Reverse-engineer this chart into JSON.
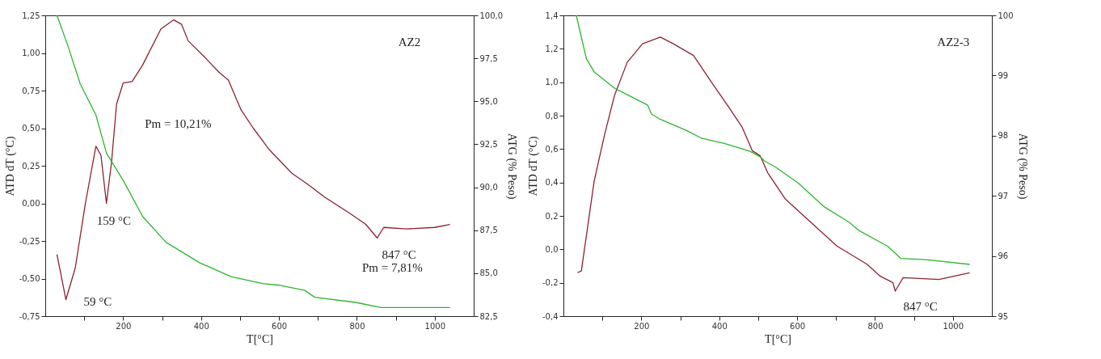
{
  "chart_data": [
    {
      "type": "line",
      "xlabel": "T[°C]",
      "ylabel": "ATD dT (°C)",
      "y2label": "ATG (% Peso)",
      "xlim": [
        0,
        1100
      ],
      "xticks": [
        {
          "value": 100,
          "label": null
        },
        200,
        {
          "value": 300,
          "label": null
        },
        400,
        {
          "value": 500,
          "label": null
        },
        600,
        {
          "value": 700,
          "label": null
        },
        800,
        {
          "value": 900,
          "label": null
        },
        1000
      ],
      "ylim": [
        -0.75,
        1.25
      ],
      "yticks": [
        {
          "value": -0.75,
          "label": "-0,75"
        },
        {
          "value": -0.5,
          "label": "-0,50"
        },
        {
          "value": -0.25,
          "label": "-0,25"
        },
        {
          "value": 0,
          "label": "0,00"
        },
        {
          "value": 0.25,
          "label": "0,25"
        },
        {
          "value": 0.5,
          "label": "0,50"
        },
        {
          "value": 0.75,
          "label": "0,75"
        },
        {
          "value": 1,
          "label": "1,00"
        },
        {
          "value": 1.25,
          "label": "1,25"
        }
      ],
      "y2lim": [
        82.5,
        100
      ],
      "y2ticks": [
        {
          "value": 82.5,
          "label": "82,5"
        },
        {
          "value": 85,
          "label": "85,0"
        },
        {
          "value": 87.5,
          "label": "87,5"
        },
        {
          "value": 90,
          "label": "90,0"
        },
        {
          "value": 92.5,
          "label": "92,5"
        },
        {
          "value": 95,
          "label": "95,0"
        },
        {
          "value": 97.5,
          "label": "97,5"
        },
        {
          "value": 100,
          "label": "100,0"
        }
      ],
      "series": [
        {
          "color": "#8b2232",
          "x": [
            30,
            53,
            77,
            103,
            130,
            143,
            157,
            170,
            183,
            200,
            223,
            250,
            297,
            330,
            350,
            367,
            410,
            447,
            470,
            503,
            534,
            557,
            574,
            633,
            672,
            718,
            784,
            823,
            852,
            869,
            928,
            1000,
            1039
          ],
          "values": [
            -0.34,
            -0.64,
            -0.43,
            0.0,
            0.38,
            0.32,
            0.0,
            0.27,
            0.66,
            0.8,
            0.81,
            0.92,
            1.16,
            1.22,
            1.19,
            1.08,
            0.97,
            0.87,
            0.82,
            0.62,
            0.5,
            0.42,
            0.36,
            0.2,
            0.13,
            0.04,
            -0.07,
            -0.14,
            -0.23,
            -0.16,
            -0.17,
            -0.16,
            -0.14
          ]
        },
        {
          "color": "#2db52d",
          "axis": "y2",
          "x": [
            30,
            57,
            90,
            130,
            157,
            200,
            250,
            310,
            397,
            477,
            557,
            600,
            666,
            692,
            797,
            862,
            928,
            1039
          ],
          "values": [
            100,
            98.3,
            96.0,
            94.2,
            92.0,
            90.4,
            88.3,
            86.8,
            85.6,
            84.8,
            84.4,
            84.3,
            84.0,
            83.6,
            83.3,
            83.0,
            83.0,
            83.0
          ]
        }
      ],
      "annotations": [
        "AZ2",
        "Pm = 10,21%",
        "Pm = 7,81%",
        {
          "text": "59 °C",
          "x": 53,
          "y": -0.64
        },
        {
          "text": "159 °C",
          "x": 157,
          "y": 0.0
        },
        {
          "text": "847 °C",
          "x": 852,
          "y": -0.23
        }
      ]
    },
    {
      "type": "line",
      "xlabel": "T[°C]",
      "ylabel": "ATD dT (°C)",
      "y2label": "ATG (% Peso)",
      "xlim": [
        0,
        1100
      ],
      "xticks": [
        {
          "value": 100,
          "label": null
        },
        200,
        {
          "value": 300,
          "label": null
        },
        400,
        {
          "value": 500,
          "label": null
        },
        600,
        {
          "value": 700,
          "label": null
        },
        800,
        {
          "value": 900,
          "label": null
        },
        1000
      ],
      "ylim": [
        -0.4,
        1.4
      ],
      "yticks": [
        {
          "value": -0.4,
          "label": "-0,4"
        },
        {
          "value": -0.2,
          "label": "-0,2"
        },
        {
          "value": 0,
          "label": "0,0"
        },
        {
          "value": 0.2,
          "label": "0,2"
        },
        {
          "value": 0.4,
          "label": "0,4"
        },
        {
          "value": 0.6,
          "label": "0,6"
        },
        {
          "value": 0.8,
          "label": "0,8"
        },
        {
          "value": 1,
          "label": "1,0"
        },
        {
          "value": 1.2,
          "label": "1,2"
        },
        {
          "value": 1.4,
          "label": "1,4"
        }
      ],
      "y2lim": [
        95,
        100
      ],
      "y2ticks": [
        95,
        96,
        97,
        98,
        99,
        100
      ],
      "series": [
        {
          "color": "#8b2232",
          "x": [
            36,
            46,
            79,
            105,
            131,
            164,
            203,
            249,
            282,
            334,
            380,
            419,
            459,
            485,
            505,
            524,
            570,
            636,
            702,
            780,
            813,
            846,
            852,
            872,
            964,
            1043
          ],
          "values": [
            -0.14,
            -0.13,
            0.41,
            0.68,
            0.92,
            1.12,
            1.23,
            1.27,
            1.23,
            1.16,
            1.0,
            0.87,
            0.73,
            0.59,
            0.56,
            0.46,
            0.3,
            0.16,
            0.02,
            -0.09,
            -0.16,
            -0.2,
            -0.25,
            -0.17,
            -0.18,
            -0.14
          ]
        },
        {
          "color": "#2db52d",
          "axis": "y2",
          "x": [
            33,
            59,
            79,
            131,
            170,
            216,
            226,
            249,
            315,
            354,
            413,
            479,
            505,
            518,
            544,
            603,
            669,
            734,
            757,
            833,
            866,
            931,
            1043
          ],
          "values": [
            100,
            99.28,
            99.06,
            98.79,
            98.66,
            98.51,
            98.36,
            98.27,
            98.09,
            97.96,
            97.87,
            97.74,
            97.65,
            97.57,
            97.48,
            97.21,
            96.82,
            96.56,
            96.43,
            96.16,
            95.96,
            95.94,
            95.86
          ]
        }
      ],
      "annotations": [
        "AZ2-3",
        {
          "text": "847 °C",
          "x": 852,
          "y": -0.25
        }
      ]
    }
  ]
}
